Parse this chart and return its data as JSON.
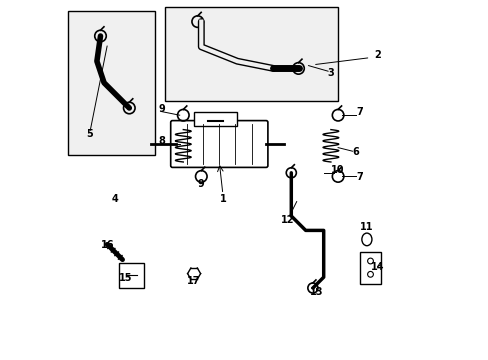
{
  "bg_color": "#ffffff",
  "label_color": "#000000",
  "line_color": "#000000",
  "box_fill": "#f0f0f0"
}
